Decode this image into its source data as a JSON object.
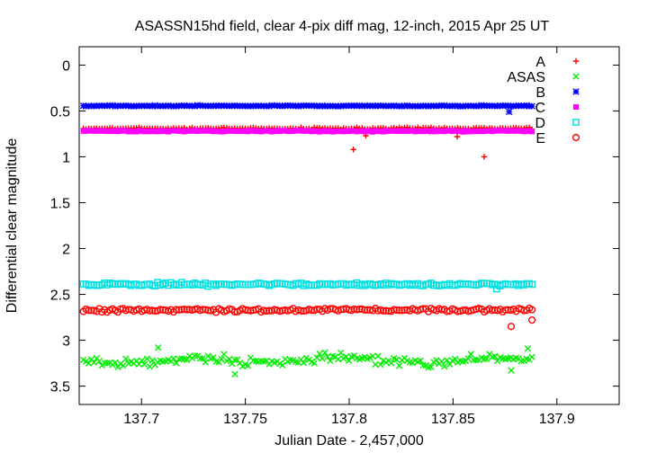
{
  "chart_data": {
    "type": "scatter",
    "title": "ASASSN15hd field, clear 4-pix diff mag, 12-inch, 2015 Apr 25 UT",
    "xlabel": "Julian Date - 2,457,000",
    "ylabel": "Differential clear magnitude",
    "xlim": [
      137.67,
      137.93
    ],
    "ylim": [
      3.7,
      -0.2
    ],
    "y_inverted": true,
    "x_ticks": [
      "137.7",
      "137.75",
      "137.8",
      "137.85",
      "137.9"
    ],
    "x_tick_values": [
      137.7,
      137.75,
      137.8,
      137.85,
      137.9
    ],
    "y_ticks": [
      "0",
      "0.5",
      "1",
      "1.5",
      "2",
      "2.5",
      "3",
      "3.5"
    ],
    "y_tick_values": [
      0,
      0.5,
      1,
      1.5,
      2,
      2.5,
      3,
      3.5
    ],
    "grid": "none",
    "legend_position": "top-right",
    "x_data_range": [
      137.672,
      137.888
    ],
    "series": [
      {
        "name": "A",
        "marker": "plus",
        "color": "#ff0000",
        "base": 0.69,
        "noise": 0.015,
        "points": [
          [
            137.802,
            0.92
          ],
          [
            137.865,
            1.0
          ],
          [
            137.852,
            0.78
          ],
          [
            137.808,
            0.77
          ]
        ]
      },
      {
        "name": "ASAS",
        "marker": "cross",
        "color": "#00ee00",
        "base": 3.22,
        "noise": 0.07,
        "points": [
          [
            137.708,
            3.08
          ],
          [
            137.745,
            3.37
          ],
          [
            137.878,
            3.33
          ],
          [
            137.886,
            3.09
          ]
        ]
      },
      {
        "name": "B",
        "marker": "star",
        "color": "#0000ff",
        "base": 0.445,
        "noise": 0.008,
        "points": [
          [
            137.877,
            0.51
          ]
        ]
      },
      {
        "name": "C",
        "marker": "square-filled",
        "color": "#ff00ff",
        "base": 0.72,
        "noise": 0.012,
        "points": []
      },
      {
        "name": "D",
        "marker": "square-open",
        "color": "#00e0e0",
        "base": 2.39,
        "noise": 0.025,
        "points": [
          [
            137.871,
            2.44
          ]
        ]
      },
      {
        "name": "E",
        "marker": "circle-open",
        "color": "#ff0000",
        "base": 2.67,
        "noise": 0.03,
        "points": [
          [
            137.878,
            2.85
          ],
          [
            137.888,
            2.78
          ]
        ]
      }
    ]
  }
}
